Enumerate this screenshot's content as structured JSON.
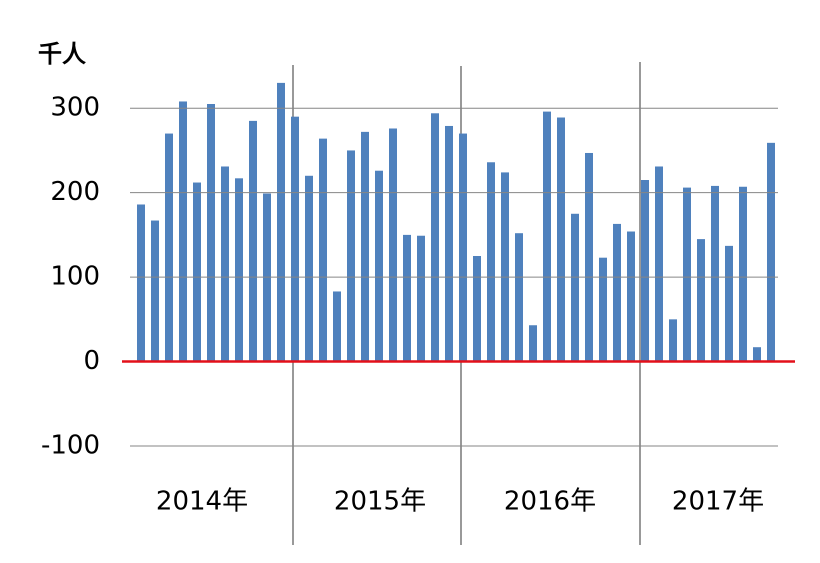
{
  "chart_data": {
    "type": "bar",
    "unit_label": "千人",
    "categories": [
      null,
      null,
      null,
      null,
      null,
      null,
      null,
      null,
      null,
      null,
      null,
      null,
      null,
      null,
      null,
      null,
      null,
      null,
      null,
      null,
      null,
      null,
      null,
      null,
      null,
      null,
      null,
      null,
      null,
      null,
      null,
      null,
      null,
      null,
      null,
      null,
      null,
      null,
      null,
      null,
      null,
      null,
      null,
      null,
      null,
      null
    ],
    "values": [
      186,
      167,
      270,
      308,
      212,
      305,
      231,
      217,
      285,
      199,
      330,
      290,
      220,
      264,
      83,
      250,
      272,
      226,
      276,
      150,
      149,
      294,
      279,
      270,
      125,
      236,
      224,
      152,
      43,
      296,
      289,
      175,
      247,
      123,
      163,
      154,
      215,
      231,
      50,
      206,
      145,
      208,
      137,
      207,
      17,
      259
    ],
    "year_labels": [
      "2014年",
      "2015年",
      "2016年",
      "2017年"
    ],
    "color": "#4f81bd",
    "ylim": [
      -100,
      350
    ],
    "yticks": [
      -100,
      0,
      100,
      200,
      300
    ],
    "grid": true,
    "grid_color": "#868686",
    "zero_line_color": "#e3101a"
  }
}
